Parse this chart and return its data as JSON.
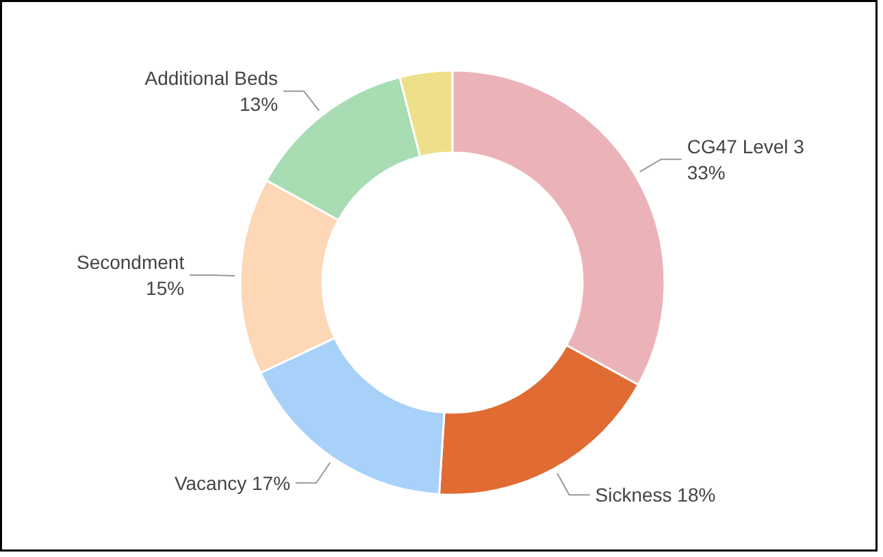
{
  "chart_data": {
    "type": "donut",
    "categories": [
      "CG47 Level 3",
      "Sickness",
      "Vacancy",
      "Secondment",
      "Additional Beds",
      null
    ],
    "values": [
      33,
      18,
      17,
      15,
      13,
      4
    ],
    "colors": [
      "#ebb3b8",
      "#e06b33",
      "#a8d1f9",
      "#fdd7b6",
      "#a8dcb3",
      "#eee08a"
    ],
    "value_labels": [
      "33%",
      "18%",
      "17%",
      "15%",
      "13%",
      null
    ]
  }
}
